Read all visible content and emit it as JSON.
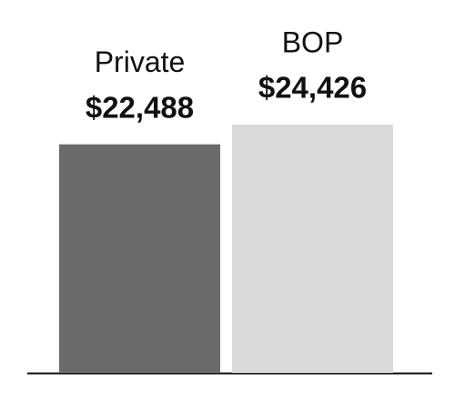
{
  "chart_data": {
    "type": "bar",
    "categories": [
      "Private",
      "BOP"
    ],
    "values": [
      22488,
      24426
    ],
    "value_labels": [
      "$22,488",
      "$24,426"
    ],
    "colors": [
      "#6b6b6b",
      "#d9d9d9"
    ]
  }
}
